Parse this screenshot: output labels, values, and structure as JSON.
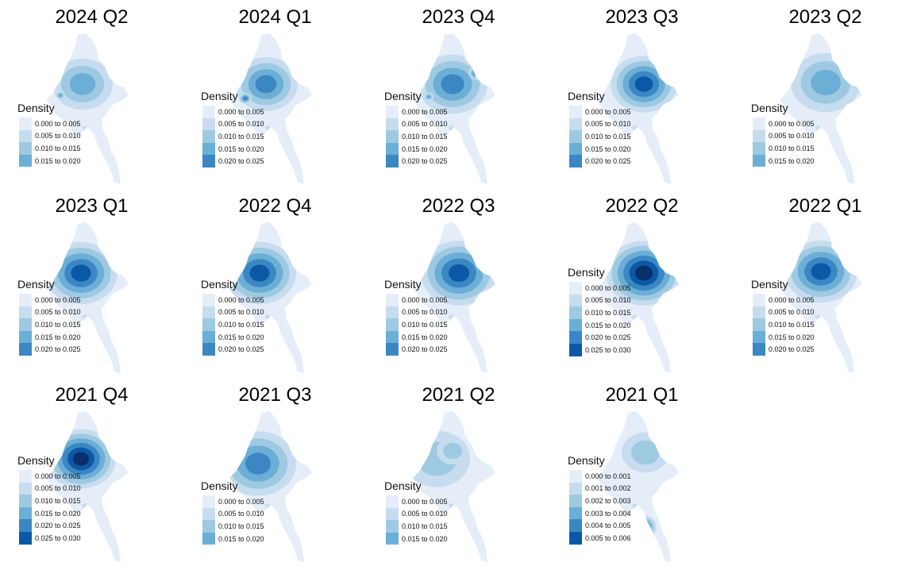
{
  "palette": [
    "#e5eef8",
    "#c7dcef",
    "#9ecae1",
    "#6baed6",
    "#3b87c3",
    "#0b59a6",
    "#08306b"
  ],
  "panels": [
    {
      "title": "2024 Q2",
      "legend_title": "Density",
      "legend": [
        "0.000 to 0.005",
        "0.005 to 0.010",
        "0.010 to 0.015",
        "0.015 to 0.020"
      ]
    },
    {
      "title": "2024 Q1",
      "legend_title": "Density",
      "legend": [
        "0.000 to 0.005",
        "0.005 to 0.010",
        "0.010 to 0.015",
        "0.015 to 0.020",
        "0.020 to 0.025"
      ]
    },
    {
      "title": "2023 Q4",
      "legend_title": "Density",
      "legend": [
        "0.000 to 0.005",
        "0.005 to 0.010",
        "0.010 to 0.015",
        "0.015 to 0.020",
        "0.020 to 0.025"
      ]
    },
    {
      "title": "2023 Q3",
      "legend_title": "Density",
      "legend": [
        "0.000 to 0.005",
        "0.005 to 0.010",
        "0.010 to 0.015",
        "0.015 to 0.020",
        "0.020 to 0.025"
      ]
    },
    {
      "title": "2023 Q2",
      "legend_title": "Density",
      "legend": [
        "0.000 to 0.005",
        "0.005 to 0.010",
        "0.010 to 0.015",
        "0.015 to 0.020"
      ]
    },
    {
      "title": "2023 Q1",
      "legend_title": "Density",
      "legend": [
        "0.000 to 0.005",
        "0.005 to 0.010",
        "0.010 to 0.015",
        "0.015 to 0.020",
        "0.020 to 0.025"
      ]
    },
    {
      "title": "2022 Q4",
      "legend_title": "Density",
      "legend": [
        "0.000 to 0.005",
        "0.005 to 0.010",
        "0.010 to 0.015",
        "0.015 to 0.020",
        "0.020 to 0.025"
      ]
    },
    {
      "title": "2022 Q3",
      "legend_title": "Density",
      "legend": [
        "0.000 to 0.005",
        "0.005 to 0.010",
        "0.010 to 0.015",
        "0.015 to 0.020",
        "0.020 to 0.025"
      ]
    },
    {
      "title": "2022 Q2",
      "legend_title": "Density",
      "legend": [
        "0.000 to 0.005",
        "0.005 to 0.010",
        "0.010 to 0.015",
        "0.015 to 0.020",
        "0.020 to 0.025",
        "0.025 to 0.030"
      ]
    },
    {
      "title": "2022 Q1",
      "legend_title": "Density",
      "legend": [
        "0.000 to 0.005",
        "0.005 to 0.010",
        "0.010 to 0.015",
        "0.015 to 0.020",
        "0.020 to 0.025"
      ]
    },
    {
      "title": "2021 Q4",
      "legend_title": "Density",
      "legend": [
        "0.000 to 0.005",
        "0.005 to 0.010",
        "0.010 to 0.015",
        "0.015 to 0.020",
        "0.020 to 0.025",
        "0.025 to 0.030"
      ]
    },
    {
      "title": "2021 Q3",
      "legend_title": "Density",
      "legend": [
        "0.000 to 0.005",
        "0.005 to 0.010",
        "0.010 to 0.015",
        "0.015 to 0.020"
      ]
    },
    {
      "title": "2021 Q2",
      "legend_title": "Density",
      "legend": [
        "0.000 to 0.005",
        "0.005 to 0.010",
        "0.010 to 0.015",
        "0.015 to 0.020"
      ]
    },
    {
      "title": "2021 Q1",
      "legend_title": "Density",
      "legend": [
        "0.000 to 0.001",
        "0.001 to 0.002",
        "0.002 to 0.003",
        "0.003 to 0.004",
        "0.004 to 0.005",
        "0.005 to 0.006"
      ]
    }
  ]
}
